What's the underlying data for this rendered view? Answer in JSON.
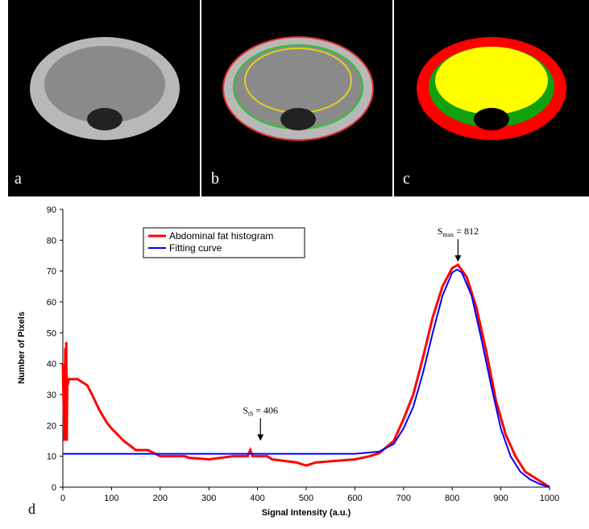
{
  "panels": {
    "labels": [
      "a",
      "b",
      "c"
    ],
    "chart_label": "d"
  },
  "chart_data": {
    "type": "line",
    "xlabel": "Signal Intensity (a.u.)",
    "ylabel": "Number of Pixels",
    "xlim": [
      0,
      1000
    ],
    "ylim": [
      0,
      90
    ],
    "xticks": [
      0,
      100,
      200,
      300,
      400,
      500,
      600,
      700,
      800,
      900,
      1000
    ],
    "yticks": [
      0,
      10,
      20,
      30,
      40,
      50,
      60,
      70,
      80,
      90
    ],
    "grid": false,
    "legend": "upper-left",
    "series": [
      {
        "name": "Abdominal fat histogram",
        "color": "#ff0000",
        "x": [
          0,
          3,
          5,
          6,
          7,
          8,
          9,
          10,
          12,
          15,
          20,
          30,
          50,
          60,
          75,
          90,
          100,
          125,
          150,
          175,
          200,
          250,
          260,
          300,
          350,
          380,
          385,
          390,
          420,
          430,
          480,
          500,
          520,
          600,
          630,
          650,
          680,
          700,
          720,
          740,
          760,
          780,
          800,
          812,
          830,
          850,
          870,
          890,
          910,
          930,
          950,
          970,
          990,
          1000
        ],
        "values": [
          40,
          15,
          45,
          15,
          47,
          15,
          34,
          33,
          35,
          35,
          35,
          35,
          33,
          30,
          25,
          21,
          19,
          15,
          12,
          12,
          10,
          10,
          9.5,
          9,
          10,
          10,
          12,
          10,
          10,
          9,
          8,
          7,
          8,
          9,
          10,
          11,
          15,
          22,
          30,
          42,
          55,
          65,
          71,
          72,
          68,
          58,
          44,
          28,
          17,
          10,
          5,
          3,
          1,
          0
        ]
      },
      {
        "name": "Fitting curve",
        "color": "#0000ff",
        "x": [
          0,
          100,
          200,
          300,
          400,
          500,
          600,
          650,
          680,
          700,
          720,
          740,
          760,
          780,
          800,
          810,
          820,
          840,
          860,
          880,
          900,
          920,
          940,
          960,
          980,
          1000
        ],
        "values": [
          10.8,
          10.8,
          10.8,
          10.8,
          10.8,
          10.8,
          10.8,
          11.5,
          14,
          19,
          26,
          37,
          50,
          62,
          69.5,
          70.5,
          69.5,
          62,
          48,
          33,
          19,
          10,
          5,
          2.5,
          1,
          0
        ]
      }
    ],
    "annotations": [
      {
        "base": "S",
        "sub": "max",
        "rest": " = 812",
        "x": 812,
        "y": 73
      },
      {
        "base": "S",
        "sub": "th",
        "rest": " = 406",
        "x": 406,
        "y": 15
      }
    ]
  }
}
